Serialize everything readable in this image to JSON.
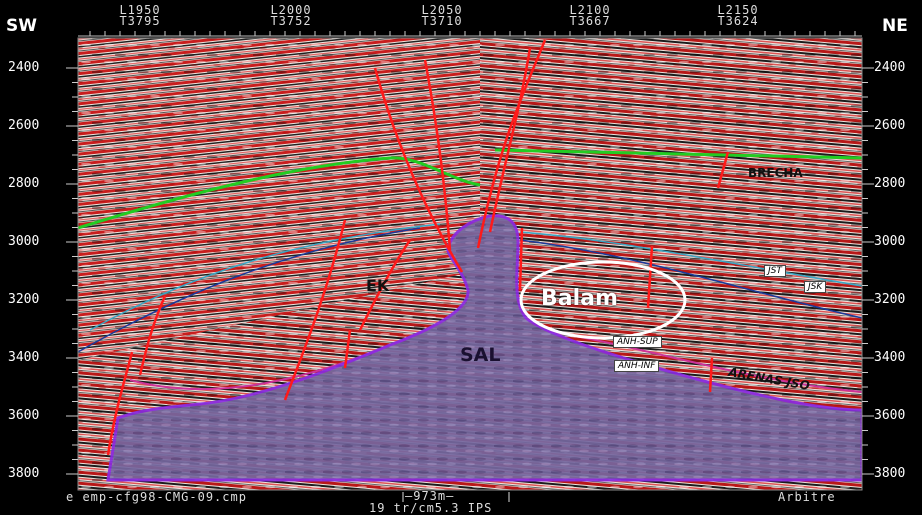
{
  "header": {
    "left_corner": "SW",
    "right_corner": "NE",
    "traces": [
      {
        "line": "L1950",
        "trace": "T3795"
      },
      {
        "line": "L2000",
        "trace": "T3752"
      },
      {
        "line": "L2050",
        "trace": "T3710"
      },
      {
        "line": "L2100",
        "trace": "T3667"
      },
      {
        "line": "L2150",
        "trace": "T3624"
      }
    ]
  },
  "depth_axis": {
    "labels_left": [
      "2400",
      "2600",
      "2800",
      "3000",
      "3200",
      "3400",
      "3600",
      "3800"
    ],
    "labels_right": [
      "2400",
      "2600",
      "2800",
      "3000",
      "3200",
      "3400",
      "3600",
      "3800"
    ]
  },
  "annotations": {
    "brecha": "BRECHA",
    "ek": "EK",
    "sal": "SAL",
    "balam": "Balam",
    "jst": "JST",
    "jsk": "JSK",
    "anh_sup": "ANH-SUP",
    "anh_inf": "ANH-INF",
    "arenas": "ARENAS JSO"
  },
  "footer": {
    "file": "e emp-cfg98-CMG-09.cmp",
    "scale": "—973m—",
    "params": "19 tr/cm5.3 IPS",
    "mode": "Arbitre"
  },
  "colors": {
    "salt_fill": "#6f5fa8",
    "salt_edge": "#8a2be2",
    "fault": "#ff1a1a",
    "horizon_green": "#22cc22",
    "horizon_blue": "#1a3a9a",
    "horizon_cyan": "#3aa6c4",
    "horizon_purple": "#7b1fa2"
  }
}
